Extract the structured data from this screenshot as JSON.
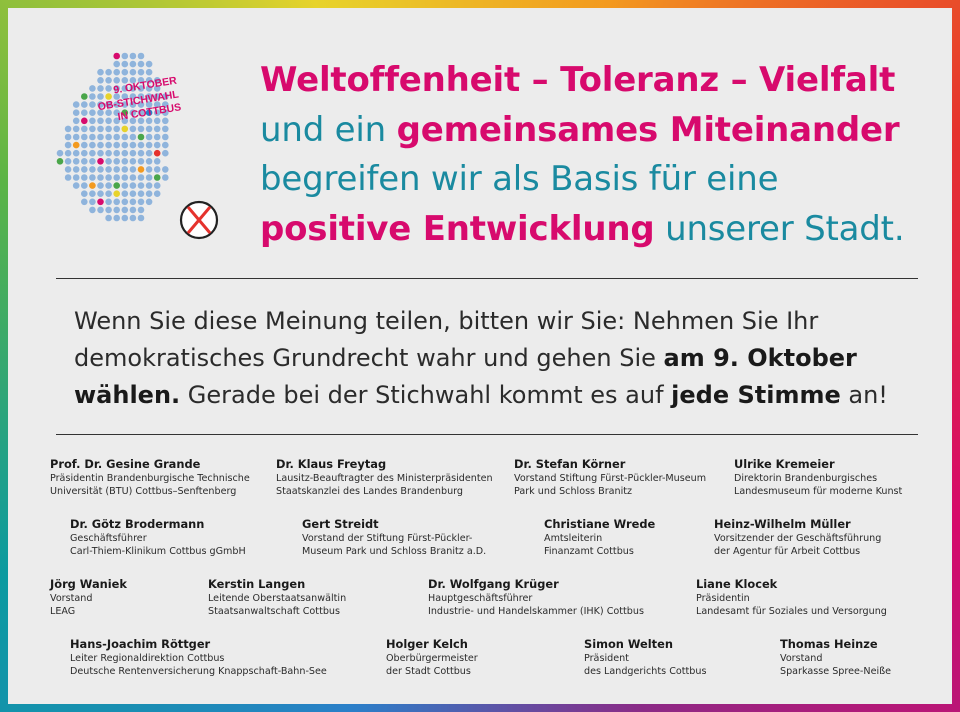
{
  "logo": {
    "lines": [
      "9. OKTOBER",
      "OB-STICHWAHL",
      "IN COTTBUS"
    ],
    "icon": "ballot-cross-icon",
    "colors": {
      "magenta": "#d70a6d",
      "teal": "#1a8aa0",
      "dot": "#8fb4dc",
      "green": "#4aa64a",
      "orange": "#f39a1f",
      "yellow": "#e7d32b",
      "red": "#e5322d",
      "blue": "#2b7fc9"
    }
  },
  "headline": {
    "l1": "Weltoffenheit – Toleranz – Vielfalt",
    "l2a": "und ein ",
    "l2b": "gemeinsames Miteinander",
    "l3": "begreifen wir als Basis für eine",
    "l4a": "positive Entwicklung",
    "l4b": " unserer Stadt."
  },
  "appeal": {
    "p1": "Wenn Sie diese Meinung teilen, bitten wir Sie: Nehmen Sie Ihr demokratisches Grundrecht wahr und gehen Sie ",
    "b1": "am 9. Oktober wählen.",
    "p2": " Gerade bei der Stichwahl kommt es auf ",
    "b2": "jede Stimme",
    "p3": " an!"
  },
  "signatories": [
    {
      "name": "Prof. Dr. Gesine Grande",
      "l1": "Präsidentin Brandenburgische Technische",
      "l2": "Universität (BTU) Cottbus–Senftenberg"
    },
    {
      "name": "Dr. Klaus Freytag",
      "l1": "Lausitz-Beauftragter des Ministerpräsidenten",
      "l2": "Staatskanzlei des Landes Brandenburg"
    },
    {
      "name": "Dr. Stefan Körner",
      "l1": "Vorstand Stiftung Fürst-Pückler-Museum",
      "l2": "Park und Schloss Branitz"
    },
    {
      "name": "Ulrike Kremeier",
      "l1": "Direktorin Brandenburgisches",
      "l2": "Landesmuseum für moderne Kunst"
    },
    {
      "name": "Dr. Götz Brodermann",
      "l1": "Geschäftsführer",
      "l2": "Carl-Thiem-Klinikum Cottbus gGmbH"
    },
    {
      "name": "Gert Streidt",
      "l1": "Vorstand der Stiftung Fürst-Pückler-",
      "l2": "Museum Park und Schloss Branitz a.D."
    },
    {
      "name": "Christiane Wrede",
      "l1": "Amtsleiterin",
      "l2": "Finanzamt Cottbus"
    },
    {
      "name": "Heinz-Wilhelm Müller",
      "l1": "Vorsitzender der Geschäftsführung",
      "l2": "der Agentur für Arbeit Cottbus"
    },
    {
      "name": "Jörg Waniek",
      "l1": "Vorstand",
      "l2": "LEAG"
    },
    {
      "name": "Kerstin Langen",
      "l1": "Leitende Oberstaatsanwältin",
      "l2": "Staatsanwaltschaft Cottbus"
    },
    {
      "name": "Dr. Wolfgang Krüger",
      "l1": "Hauptgeschäftsführer",
      "l2": "Industrie- und Handelskammer (IHK) Cottbus"
    },
    {
      "name": "Liane Klocek",
      "l1": "Präsidentin",
      "l2": "Landesamt für Soziales und Versorgung"
    },
    {
      "name": "Hans-Joachim Röttger",
      "l1": "Leiter Regionaldirektion Cottbus",
      "l2": "Deutsche Rentenversicherung Knappschaft-Bahn-See"
    },
    {
      "name": "Holger Kelch",
      "l1": "Oberbürgermeister",
      "l2": "der Stadt Cottbus"
    },
    {
      "name": "Simon Welten",
      "l1": "Präsident",
      "l2": "des Landgerichts Cottbus"
    },
    {
      "name": "Thomas Heinze",
      "l1": "Vorstand",
      "l2": "Sparkasse Spree-Neiße"
    }
  ]
}
